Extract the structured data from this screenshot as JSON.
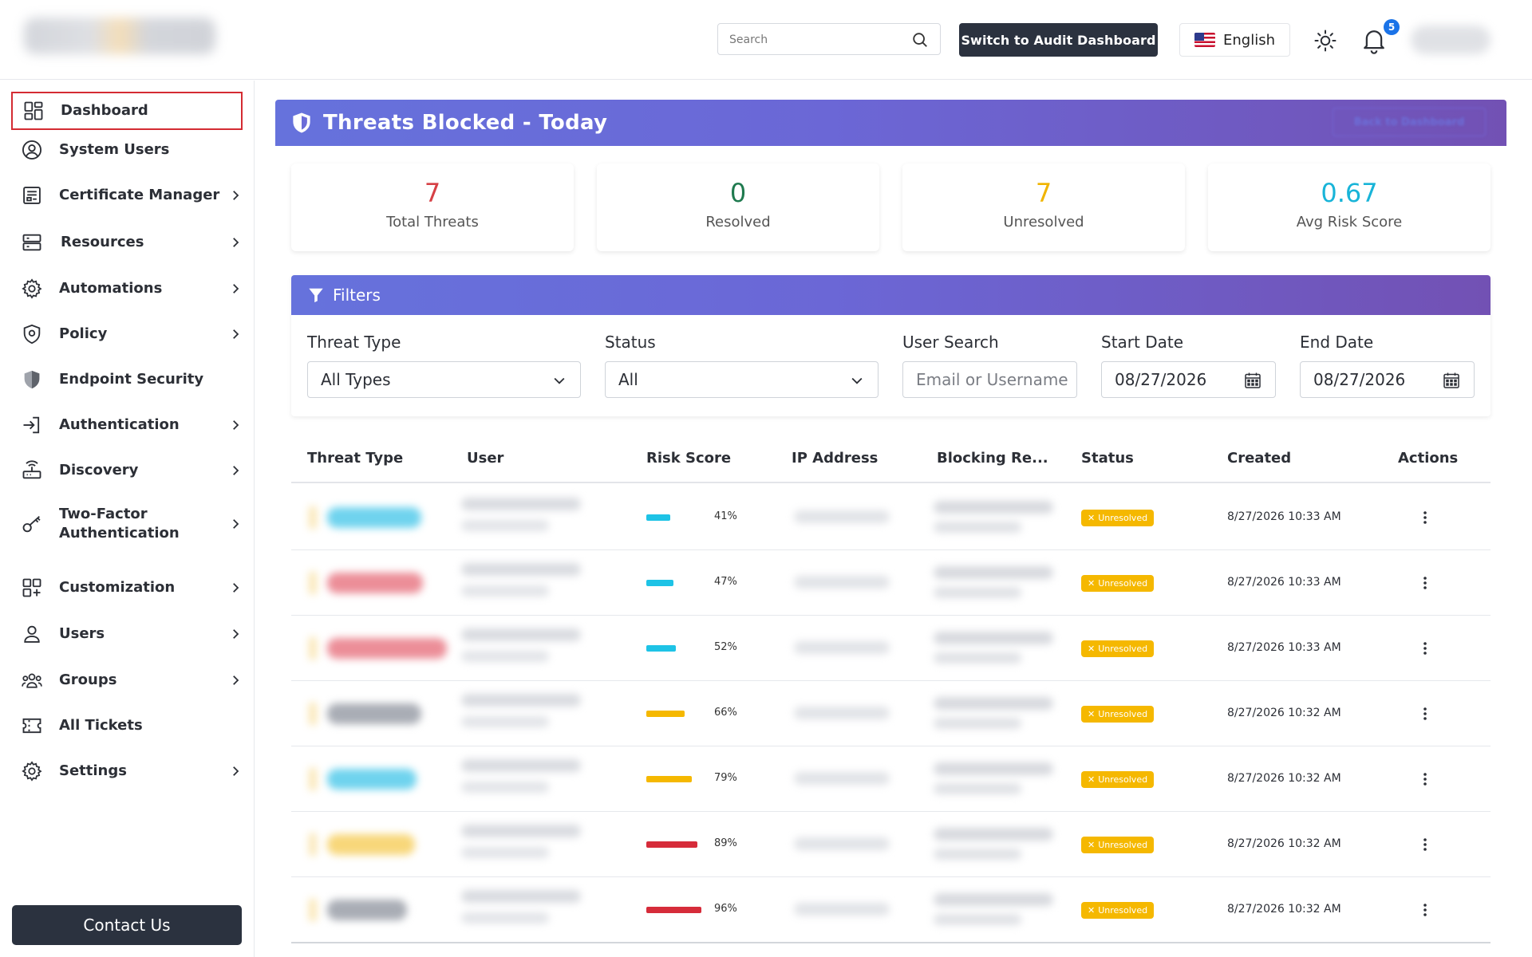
{
  "header": {
    "search_placeholder": "Search",
    "audit_button": "Switch to Audit Dashboard",
    "language": "English",
    "notification_count": "5"
  },
  "sidebar": {
    "items": [
      {
        "label": "Dashboard",
        "icon": "dashboard-icon",
        "has_submenu": false,
        "active": true
      },
      {
        "label": "System Users",
        "icon": "user-circle-icon",
        "has_submenu": false
      },
      {
        "label": "Certificate Manager",
        "icon": "certificate-icon",
        "has_submenu": true
      },
      {
        "label": "Resources",
        "icon": "server-icon",
        "has_submenu": true
      },
      {
        "label": "Automations",
        "icon": "gear-icon",
        "has_submenu": true
      },
      {
        "label": "Policy",
        "icon": "policy-shield-icon",
        "has_submenu": true
      },
      {
        "label": "Endpoint Security",
        "icon": "shield-icon",
        "has_submenu": false
      },
      {
        "label": "Authentication",
        "icon": "login-icon",
        "has_submenu": true
      },
      {
        "label": "Discovery",
        "icon": "router-icon",
        "has_submenu": true
      },
      {
        "label": "Two-Factor Authentication",
        "icon": "key-icon",
        "has_submenu": true
      },
      {
        "label": "Customization",
        "icon": "grid-plus-icon",
        "has_submenu": true
      },
      {
        "label": "Users",
        "icon": "user-icon",
        "has_submenu": true
      },
      {
        "label": "Groups",
        "icon": "group-icon",
        "has_submenu": true
      },
      {
        "label": "All Tickets",
        "icon": "ticket-icon",
        "has_submenu": false
      },
      {
        "label": "Settings",
        "icon": "gear-icon",
        "has_submenu": true
      }
    ],
    "contact_button": "Contact Us"
  },
  "banner": {
    "title": "Threats Blocked - Today",
    "back_button": "Back to Dashboard"
  },
  "stats": [
    {
      "value": "7",
      "label": "Total Threats",
      "color": "#d64045"
    },
    {
      "value": "0",
      "label": "Resolved",
      "color": "#1f7a4f"
    },
    {
      "value": "7",
      "label": "Unresolved",
      "color": "#f0b400"
    },
    {
      "value": "0.67",
      "label": "Avg Risk Score",
      "color": "#18b4d8"
    }
  ],
  "filters": {
    "title": "Filters",
    "threat_type": {
      "label": "Threat Type",
      "value": "All Types"
    },
    "status": {
      "label": "Status",
      "value": "All"
    },
    "user_search": {
      "label": "User Search",
      "placeholder": "Email or Username"
    },
    "start_date": {
      "label": "Start Date",
      "value": "08/27/2026"
    },
    "end_date": {
      "label": "End Date",
      "value": "08/27/2026"
    }
  },
  "table": {
    "columns": [
      "Threat Type",
      "User",
      "Risk Score",
      "IP Address",
      "Blocking Re...",
      "Status",
      "Created",
      "Actions"
    ],
    "rows": [
      {
        "type_color": "#6fd3ee",
        "risk": "41%",
        "risk_value": 41,
        "risk_color": "#1ec3e6",
        "status": "Unresolved",
        "created": "8/27/2026 10:33 AM"
      },
      {
        "type_color": "#ec8e98",
        "risk": "47%",
        "risk_value": 47,
        "risk_color": "#1ec3e6",
        "status": "Unresolved",
        "created": "8/27/2026 10:33 AM"
      },
      {
        "type_color": "#ec8e98",
        "risk": "52%",
        "risk_value": 52,
        "risk_color": "#1ec3e6",
        "status": "Unresolved",
        "created": "8/27/2026 10:33 AM"
      },
      {
        "type_color": "#a9adb5",
        "risk": "66%",
        "risk_value": 66,
        "risk_color": "#f5b800",
        "status": "Unresolved",
        "created": "8/27/2026 10:32 AM"
      },
      {
        "type_color": "#6fd3ee",
        "risk": "79%",
        "risk_value": 79,
        "risk_color": "#f5b800",
        "status": "Unresolved",
        "created": "8/27/2026 10:32 AM"
      },
      {
        "type_color": "#f8d77a",
        "risk": "89%",
        "risk_value": 89,
        "risk_color": "#d62c3a",
        "status": "Unresolved",
        "created": "8/27/2026 10:32 AM"
      },
      {
        "type_color": "#a9adb5",
        "risk": "96%",
        "risk_value": 96,
        "risk_color": "#d62c3a",
        "status": "Unresolved",
        "created": "8/27/2026 10:32 AM"
      }
    ]
  }
}
